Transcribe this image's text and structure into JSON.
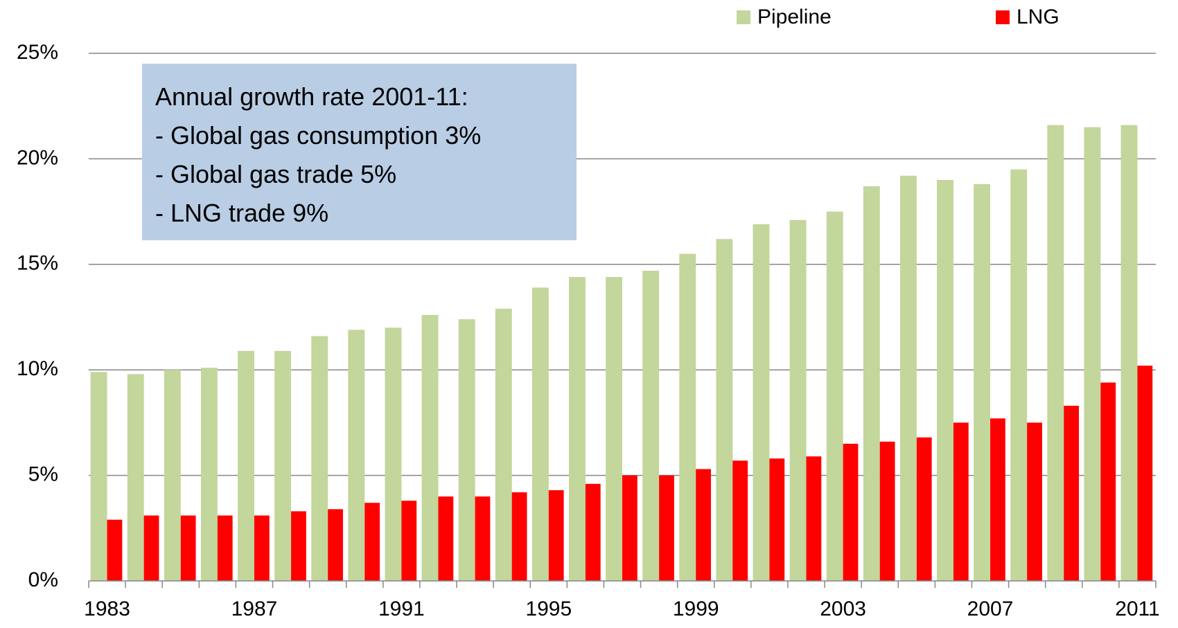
{
  "chart_data": {
    "type": "bar",
    "categories": [
      "1983",
      null,
      null,
      null,
      "1987",
      null,
      null,
      null,
      "1991",
      null,
      null,
      null,
      "1995",
      null,
      null,
      null,
      "1999",
      null,
      null,
      null,
      "2003",
      null,
      null,
      null,
      "2007",
      null,
      null,
      null,
      "2011"
    ],
    "series": [
      {
        "name": "Pipeline",
        "color": "#c3d69b",
        "values": [
          9.9,
          9.8,
          10.0,
          10.1,
          10.9,
          10.9,
          11.6,
          11.9,
          12.0,
          12.6,
          12.4,
          12.9,
          13.9,
          14.4,
          14.4,
          14.7,
          15.5,
          16.2,
          16.9,
          17.1,
          17.5,
          18.7,
          19.2,
          19.0,
          18.8,
          19.5,
          21.6,
          21.5,
          21.6
        ]
      },
      {
        "name": "LNG",
        "color": "#ff0000",
        "values": [
          2.9,
          3.1,
          3.1,
          3.1,
          3.1,
          3.3,
          3.4,
          3.7,
          3.8,
          4.0,
          4.0,
          4.2,
          4.3,
          4.6,
          5.0,
          5.0,
          5.3,
          5.7,
          5.8,
          5.9,
          6.5,
          6.6,
          6.8,
          7.5,
          7.7,
          7.5,
          8.3,
          9.4,
          10.2
        ]
      }
    ],
    "ylim": [
      0,
      25
    ],
    "yticks": [
      {
        "value": 0,
        "label": "0%"
      },
      {
        "value": 5,
        "label": "5%"
      },
      {
        "value": 10,
        "label": "10%"
      },
      {
        "value": 15,
        "label": "15%"
      },
      {
        "value": 20,
        "label": "20%"
      },
      {
        "value": 25,
        "label": "25%"
      }
    ],
    "grid": true,
    "legend": "top-right",
    "annotations": [
      "Annual growth rate 2001-11:",
      "- Global gas consumption 3%",
      "- Global gas trade 5%",
      "- LNG trade 9%"
    ]
  }
}
